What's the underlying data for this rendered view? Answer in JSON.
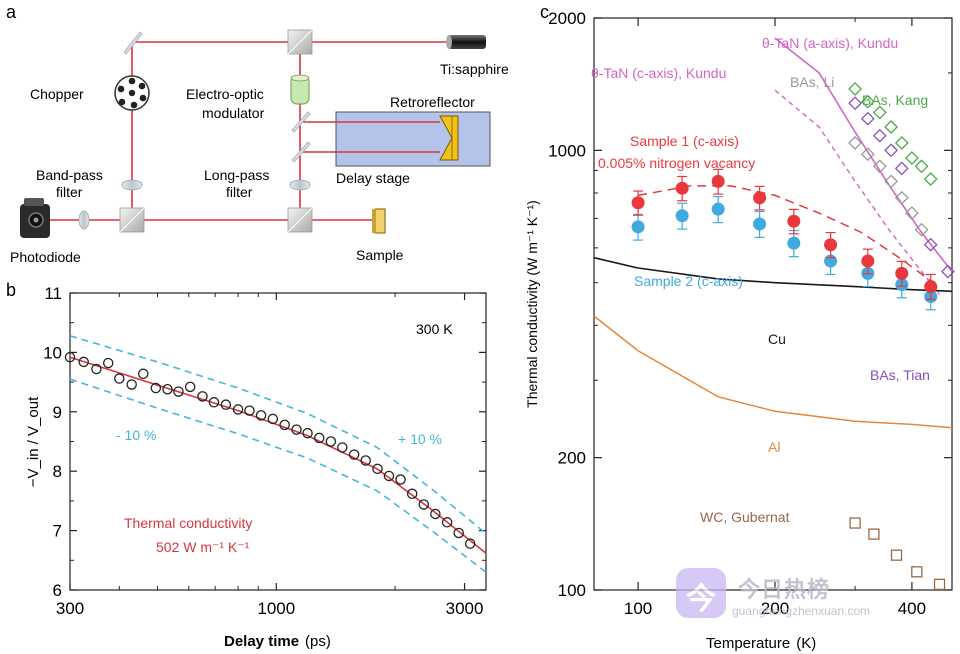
{
  "panels": {
    "a": "a",
    "b": "b",
    "c": "c"
  },
  "schematic": {
    "labels": {
      "ti_sapphire": "Ti:sapphire",
      "chopper": "Chopper",
      "eom_line1": "Electro-optic",
      "eom_line2": "modulator",
      "retroreflector": "Retroreflector",
      "delay_stage": "Delay stage",
      "bandpass_line1": "Band-pass",
      "bandpass_line2": "filter",
      "longpass_line1": "Long-pass",
      "longpass_line2": "filter",
      "photodiode": "Photodiode",
      "sample": "Sample"
    },
    "colors": {
      "beam": "#d8363c",
      "stage": "#b4c3ea",
      "retro": "#f2c21b",
      "eom": "#c8e8b0"
    }
  },
  "chart_data": [
    {
      "panel": "b",
      "type": "scatter",
      "xlabel_main": "Delay time",
      "xlabel_unit": "(ps)",
      "ylabel": "−V_in / V_out",
      "xscale": "log",
      "xlim": [
        300,
        3400
      ],
      "ylim": [
        6,
        11
      ],
      "xticks": [
        300,
        1000,
        3000
      ],
      "xtick_labels": [
        "300",
        "1000",
        "3000"
      ],
      "yticks": [
        6,
        7,
        8,
        9,
        10,
        11
      ],
      "ytick_labels": [
        "6",
        "7",
        "8",
        "9",
        "10",
        "11"
      ],
      "annotations": {
        "temperature": "300 K",
        "minus10": "- 10 %",
        "plus10": "+ 10 %",
        "tc_line1": "Thermal conductivity",
        "tc_line2": "502 W m⁻¹ K⁻¹"
      },
      "points": {
        "x": [
          300,
          325,
          350,
          375,
          400,
          430,
          460,
          495,
          530,
          565,
          605,
          650,
          695,
          745,
          800,
          855,
          915,
          980,
          1050,
          1125,
          1200,
          1285,
          1375,
          1470,
          1575,
          1685,
          1805,
          1930,
          2065,
          2210,
          2365,
          2530,
          2710,
          2900,
          3100
        ],
        "y": [
          9.92,
          9.84,
          9.72,
          9.82,
          9.56,
          9.46,
          9.64,
          9.4,
          9.38,
          9.34,
          9.42,
          9.26,
          9.16,
          9.12,
          9.04,
          9.02,
          8.94,
          8.88,
          8.78,
          8.7,
          8.64,
          8.56,
          8.5,
          8.4,
          8.28,
          8.18,
          8.04,
          7.92,
          7.86,
          7.62,
          7.44,
          7.28,
          7.14,
          6.96,
          6.78
        ]
      },
      "fit": {
        "x": [
          300,
          500,
          800,
          1200,
          1800,
          2500,
          3400
        ],
        "y": [
          9.92,
          9.45,
          9.02,
          8.6,
          8.04,
          7.33,
          6.62
        ]
      },
      "plus10": {
        "x": [
          300,
          500,
          800,
          1200,
          1800,
          2500,
          3400
        ],
        "y": [
          10.28,
          9.84,
          9.4,
          8.97,
          8.4,
          7.68,
          6.95
        ]
      },
      "minus10": {
        "x": [
          300,
          500,
          800,
          1200,
          1800,
          2500,
          3400
        ],
        "y": [
          9.55,
          9.06,
          8.63,
          8.22,
          7.67,
          6.98,
          6.3
        ]
      },
      "colors": {
        "fit": "#d8363c",
        "bounds": "#45b5e0",
        "points": "#222222"
      }
    },
    {
      "panel": "c",
      "type": "scatter",
      "xlabel_main": "Temperature",
      "xlabel_unit": "(K)",
      "ylabel": "Thermal conductivity  (W m⁻¹ K⁻¹)",
      "xscale": "log",
      "yscale": "log",
      "xlim": [
        80,
        490
      ],
      "ylim": [
        100,
        2000
      ],
      "xticks": [
        100,
        200,
        400
      ],
      "xtick_labels": [
        "100",
        "200",
        "400"
      ],
      "yticks": [
        100,
        200,
        1000,
        2000
      ],
      "ytick_labels": [
        "100",
        "200",
        "1000",
        "2000"
      ],
      "labels": {
        "tan_a": "θ-TaN (a-axis), Kundu",
        "tan_c": "θ-TaN (c-axis), Kundu",
        "bas_li": "BAs, Li",
        "bas_kang": "BAs, Kang",
        "sample1_line1": "Sample 1 (c-axis)",
        "sample1_line2": "0.005% nitrogen vacancy",
        "sample2": "Sample 2 (c-axis)",
        "cu": "Cu",
        "bas_tian": "BAs, Tian",
        "al": "Al",
        "wc": "WC, Gubernat"
      },
      "series": [
        {
          "key": "sample1",
          "color": "#e8383e",
          "x": [
            100,
            125,
            150,
            185,
            220,
            265,
            320,
            380,
            440
          ],
          "y": [
            760,
            820,
            850,
            780,
            690,
            610,
            560,
            525,
            490
          ],
          "err": [
            48,
            52,
            55,
            48,
            44,
            40,
            36,
            34,
            32
          ]
        },
        {
          "key": "sample2",
          "color": "#3fa9e0",
          "x": [
            100,
            125,
            150,
            185,
            220,
            265,
            320,
            380,
            440
          ],
          "y": [
            670,
            710,
            735,
            680,
            615,
            560,
            525,
            495,
            465
          ],
          "err": [
            45,
            48,
            50,
            46,
            42,
            38,
            35,
            33,
            31
          ]
        },
        {
          "key": "sample1_fit",
          "color": "#e8383e",
          "x": [
            100,
            130,
            160,
            200,
            250,
            310,
            380,
            440
          ],
          "y": [
            790,
            830,
            830,
            790,
            720,
            650,
            565,
            505
          ]
        },
        {
          "key": "tan_a",
          "color": "#d366c4",
          "x": [
            200,
            250,
            300,
            360,
            420,
            490
          ],
          "y": [
            1800,
            1500,
            1100,
            820,
            650,
            530
          ]
        },
        {
          "key": "tan_c",
          "color": "#d366c4",
          "x": [
            200,
            250,
            300,
            360,
            420,
            460
          ],
          "y": [
            1370,
            1130,
            850,
            650,
            530,
            470
          ]
        },
        {
          "key": "bas_kang",
          "color": "#4aaa46",
          "x": [
            300,
            320,
            340,
            360,
            380,
            400,
            420,
            440
          ],
          "y": [
            1380,
            1290,
            1220,
            1130,
            1040,
            960,
            920,
            860
          ]
        },
        {
          "key": "bas_li",
          "color": "#999999",
          "x": [
            300,
            320,
            340,
            360,
            380,
            400,
            420
          ],
          "y": [
            1040,
            980,
            920,
            850,
            780,
            720,
            660
          ]
        },
        {
          "key": "bas_tian",
          "color": "#8a4fbe",
          "x": [
            300,
            320,
            340,
            360,
            380,
            440,
            480
          ],
          "y": [
            1280,
            1180,
            1080,
            1000,
            910,
            610,
            530
          ]
        },
        {
          "key": "cu",
          "color": "#1a1a1a",
          "x": [
            80,
            100,
            150,
            200,
            300,
            400,
            490
          ],
          "y": [
            570,
            540,
            510,
            500,
            490,
            482,
            478
          ]
        },
        {
          "key": "al",
          "color": "#e8873a",
          "x": [
            80,
            100,
            150,
            200,
            300,
            400,
            490
          ],
          "y": [
            420,
            350,
            275,
            255,
            242,
            238,
            234
          ]
        },
        {
          "key": "wc",
          "color": "#9a6848",
          "x": [
            300,
            330,
            370,
            410,
            460
          ],
          "y": [
            142,
            134,
            120,
            110,
            103
          ]
        }
      ]
    }
  ],
  "watermark": {
    "logo": "今",
    "text": "今日热榜",
    "sub": "guanghengzhenxuan.com"
  }
}
